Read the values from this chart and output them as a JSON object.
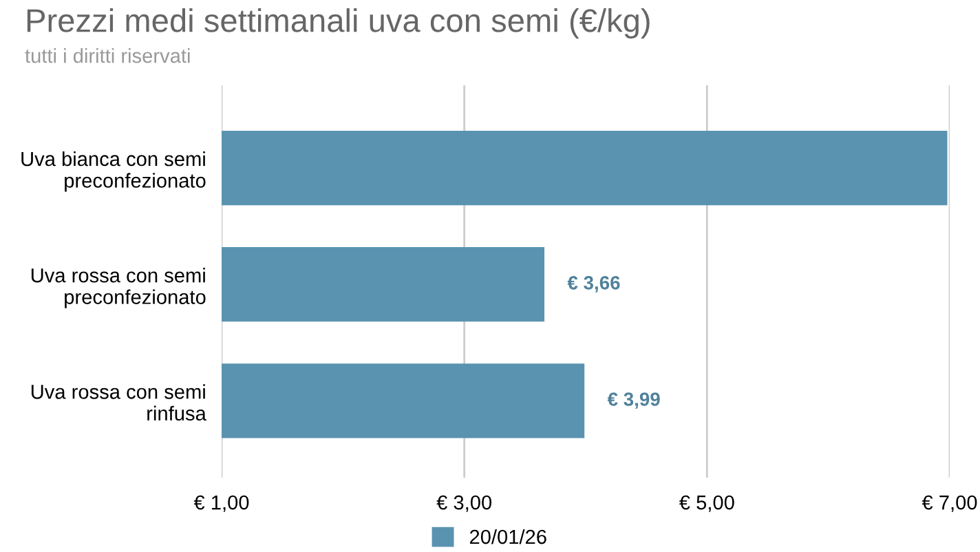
{
  "chart_data": {
    "type": "bar",
    "orientation": "horizontal",
    "title": "Prezzi medi settimanali uva con semi (€/kg)",
    "subtitle": "tutti i diritti riservati",
    "categories": [
      "Uva bianca con semi\npreconfezionato",
      "Uva rossa con semi\npreconfezionato",
      "Uva rossa con semi\nrinfusa"
    ],
    "series": [
      {
        "name": "20/01/26",
        "color": "#5a93b0",
        "values": [
          6.98,
          3.66,
          3.99
        ],
        "value_labels": [
          null,
          "€ 3,66",
          "€ 3,99"
        ]
      }
    ],
    "xlim": [
      1,
      7
    ],
    "xticks": [
      {
        "value": 1,
        "label": "€ 1,00"
      },
      {
        "value": 3,
        "label": "€ 3,00"
      },
      {
        "value": 5,
        "label": "€ 5,00"
      },
      {
        "value": 7,
        "label": "€ 7,00"
      }
    ],
    "grid": "x",
    "legend": "bottom"
  }
}
